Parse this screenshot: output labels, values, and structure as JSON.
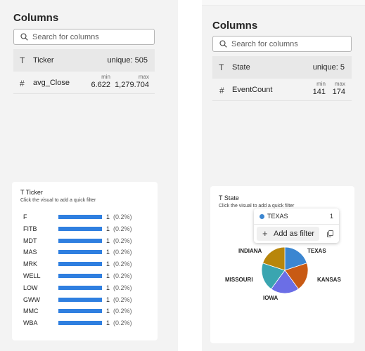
{
  "left": {
    "title": "Columns",
    "search_placeholder": "Search for columns",
    "columns": [
      {
        "type_icon": "T",
        "name": "Ticker",
        "unique": "unique: 505"
      },
      {
        "type_icon": "#",
        "name": "avg_Close",
        "min_label": "min",
        "min": "6.622",
        "max_label": "max",
        "max": "1,279.704"
      }
    ],
    "card": {
      "type_icon": "T",
      "title": "Ticker",
      "subtitle": "Click the visual to add a quick filter",
      "chart_data": {
        "type": "bar",
        "categories": [
          "F",
          "FITB",
          "MDT",
          "MAS",
          "MRK",
          "WELL",
          "LOW",
          "GWW",
          "MMC",
          "WBA"
        ],
        "values": [
          1,
          1,
          1,
          1,
          1,
          1,
          1,
          1,
          1,
          1
        ],
        "value_labels": [
          "1",
          "1",
          "1",
          "1",
          "1",
          "1",
          "1",
          "1",
          "1",
          "1"
        ],
        "percent_labels": [
          "(0.2%)",
          "(0.2%)",
          "(0.2%)",
          "(0.2%)",
          "(0.2%)",
          "(0.2%)",
          "(0.2%)",
          "(0.2%)",
          "(0.2%)",
          "(0.2%)"
        ],
        "color": "#2f7fe0"
      }
    }
  },
  "right": {
    "title": "Columns",
    "search_placeholder": "Search for columns",
    "columns": [
      {
        "type_icon": "T",
        "name": "State",
        "unique": "unique: 5"
      },
      {
        "type_icon": "#",
        "name": "EventCount",
        "min_label": "min",
        "min": "141",
        "max_label": "max",
        "max": "174"
      }
    ],
    "card": {
      "type_icon": "T",
      "title": "State",
      "subtitle": "Click the visual to add a quick filter",
      "chart_data": {
        "type": "pie",
        "categories": [
          "TEXAS",
          "KANSAS",
          "IOWA",
          "MISSOURI",
          "INDIANA"
        ],
        "values": [
          1,
          1,
          1,
          1,
          1
        ],
        "colors": [
          "#3b86d1",
          "#c85a14",
          "#6b6ee6",
          "#3aa5b0",
          "#b8860b"
        ]
      },
      "tooltip": {
        "label": "TEXAS",
        "count": "1",
        "add_filter_label": "Add as filter",
        "icon": "copy-icon"
      }
    }
  }
}
